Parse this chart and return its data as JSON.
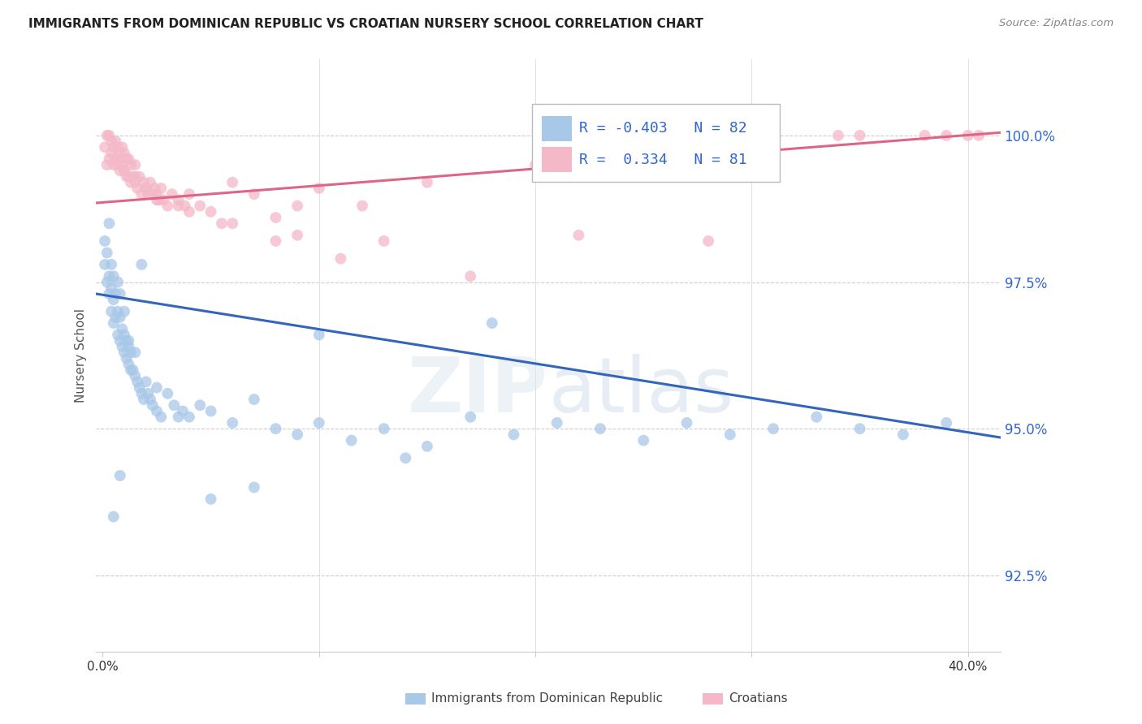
{
  "title": "IMMIGRANTS FROM DOMINICAN REPUBLIC VS CROATIAN NURSERY SCHOOL CORRELATION CHART",
  "source": "Source: ZipAtlas.com",
  "ylabel": "Nursery School",
  "yticks": [
    92.5,
    95.0,
    97.5,
    100.0
  ],
  "ytick_labels": [
    "92.5%",
    "95.0%",
    "97.5%",
    "100.0%"
  ],
  "ymin": 91.2,
  "ymax": 101.3,
  "xmin": -0.003,
  "xmax": 0.415,
  "legend_blue_r": "-0.403",
  "legend_blue_n": "82",
  "legend_pink_r": "0.334",
  "legend_pink_n": "81",
  "blue_color": "#a8c8e8",
  "pink_color": "#f4b8c8",
  "blue_line_color": "#3366bb",
  "pink_line_color": "#dd6688",
  "blue_line_y0": 97.3,
  "blue_line_y1": 94.85,
  "pink_line_y0": 98.85,
  "pink_line_y1": 100.05,
  "blue_scatter_x": [
    0.001,
    0.001,
    0.002,
    0.002,
    0.003,
    0.003,
    0.003,
    0.004,
    0.004,
    0.004,
    0.005,
    0.005,
    0.005,
    0.006,
    0.006,
    0.007,
    0.007,
    0.007,
    0.008,
    0.008,
    0.008,
    0.009,
    0.009,
    0.01,
    0.01,
    0.01,
    0.011,
    0.011,
    0.012,
    0.012,
    0.013,
    0.013,
    0.014,
    0.015,
    0.015,
    0.016,
    0.017,
    0.018,
    0.019,
    0.02,
    0.021,
    0.022,
    0.023,
    0.025,
    0.027,
    0.03,
    0.033,
    0.037,
    0.04,
    0.045,
    0.05,
    0.06,
    0.07,
    0.08,
    0.09,
    0.1,
    0.115,
    0.13,
    0.15,
    0.17,
    0.19,
    0.21,
    0.23,
    0.25,
    0.27,
    0.29,
    0.31,
    0.33,
    0.35,
    0.37,
    0.39,
    0.005,
    0.008,
    0.012,
    0.018,
    0.025,
    0.035,
    0.05,
    0.07,
    0.1,
    0.14,
    0.18
  ],
  "blue_scatter_y": [
    97.8,
    98.2,
    97.5,
    98.0,
    97.3,
    97.6,
    98.5,
    97.0,
    97.4,
    97.8,
    96.8,
    97.2,
    97.6,
    96.9,
    97.3,
    96.6,
    97.0,
    97.5,
    96.5,
    96.9,
    97.3,
    96.4,
    96.7,
    96.3,
    96.6,
    97.0,
    96.2,
    96.5,
    96.1,
    96.4,
    96.0,
    96.3,
    96.0,
    95.9,
    96.3,
    95.8,
    95.7,
    95.6,
    95.5,
    95.8,
    95.6,
    95.5,
    95.4,
    95.3,
    95.2,
    95.6,
    95.4,
    95.3,
    95.2,
    95.4,
    95.3,
    95.1,
    95.5,
    95.0,
    94.9,
    95.1,
    94.8,
    95.0,
    94.7,
    95.2,
    94.9,
    95.1,
    95.0,
    94.8,
    95.1,
    94.9,
    95.0,
    95.2,
    95.0,
    94.9,
    95.1,
    93.5,
    94.2,
    96.5,
    97.8,
    95.7,
    95.2,
    93.8,
    94.0,
    96.6,
    94.5,
    96.8
  ],
  "pink_scatter_x": [
    0.001,
    0.002,
    0.002,
    0.003,
    0.003,
    0.004,
    0.004,
    0.005,
    0.005,
    0.006,
    0.006,
    0.007,
    0.007,
    0.008,
    0.008,
    0.009,
    0.009,
    0.01,
    0.01,
    0.011,
    0.011,
    0.012,
    0.012,
    0.013,
    0.013,
    0.014,
    0.015,
    0.015,
    0.016,
    0.017,
    0.018,
    0.019,
    0.02,
    0.021,
    0.022,
    0.023,
    0.024,
    0.025,
    0.026,
    0.027,
    0.028,
    0.03,
    0.032,
    0.035,
    0.038,
    0.04,
    0.045,
    0.05,
    0.06,
    0.07,
    0.08,
    0.09,
    0.1,
    0.12,
    0.15,
    0.2,
    0.25,
    0.28,
    0.3,
    0.35,
    0.38,
    0.4,
    0.405,
    0.008,
    0.015,
    0.025,
    0.04,
    0.06,
    0.09,
    0.13,
    0.17,
    0.22,
    0.28,
    0.34,
    0.39,
    0.01,
    0.02,
    0.035,
    0.055,
    0.08,
    0.11
  ],
  "pink_scatter_y": [
    99.8,
    99.5,
    100.0,
    99.6,
    100.0,
    99.7,
    99.9,
    99.5,
    99.8,
    99.6,
    99.9,
    99.5,
    99.8,
    99.4,
    99.7,
    99.5,
    99.8,
    99.4,
    99.7,
    99.3,
    99.6,
    99.3,
    99.6,
    99.2,
    99.5,
    99.3,
    99.2,
    99.5,
    99.1,
    99.3,
    99.0,
    99.2,
    99.1,
    99.0,
    99.2,
    99.0,
    99.1,
    99.0,
    98.9,
    99.1,
    98.9,
    98.8,
    99.0,
    98.9,
    98.8,
    99.0,
    98.8,
    98.7,
    99.2,
    99.0,
    98.6,
    98.8,
    99.1,
    98.8,
    99.2,
    99.5,
    99.8,
    99.5,
    99.8,
    100.0,
    100.0,
    100.0,
    100.0,
    99.6,
    99.3,
    98.9,
    98.7,
    98.5,
    98.3,
    98.2,
    97.6,
    98.3,
    98.2,
    100.0,
    100.0,
    99.4,
    99.1,
    98.8,
    98.5,
    98.2,
    97.9
  ]
}
